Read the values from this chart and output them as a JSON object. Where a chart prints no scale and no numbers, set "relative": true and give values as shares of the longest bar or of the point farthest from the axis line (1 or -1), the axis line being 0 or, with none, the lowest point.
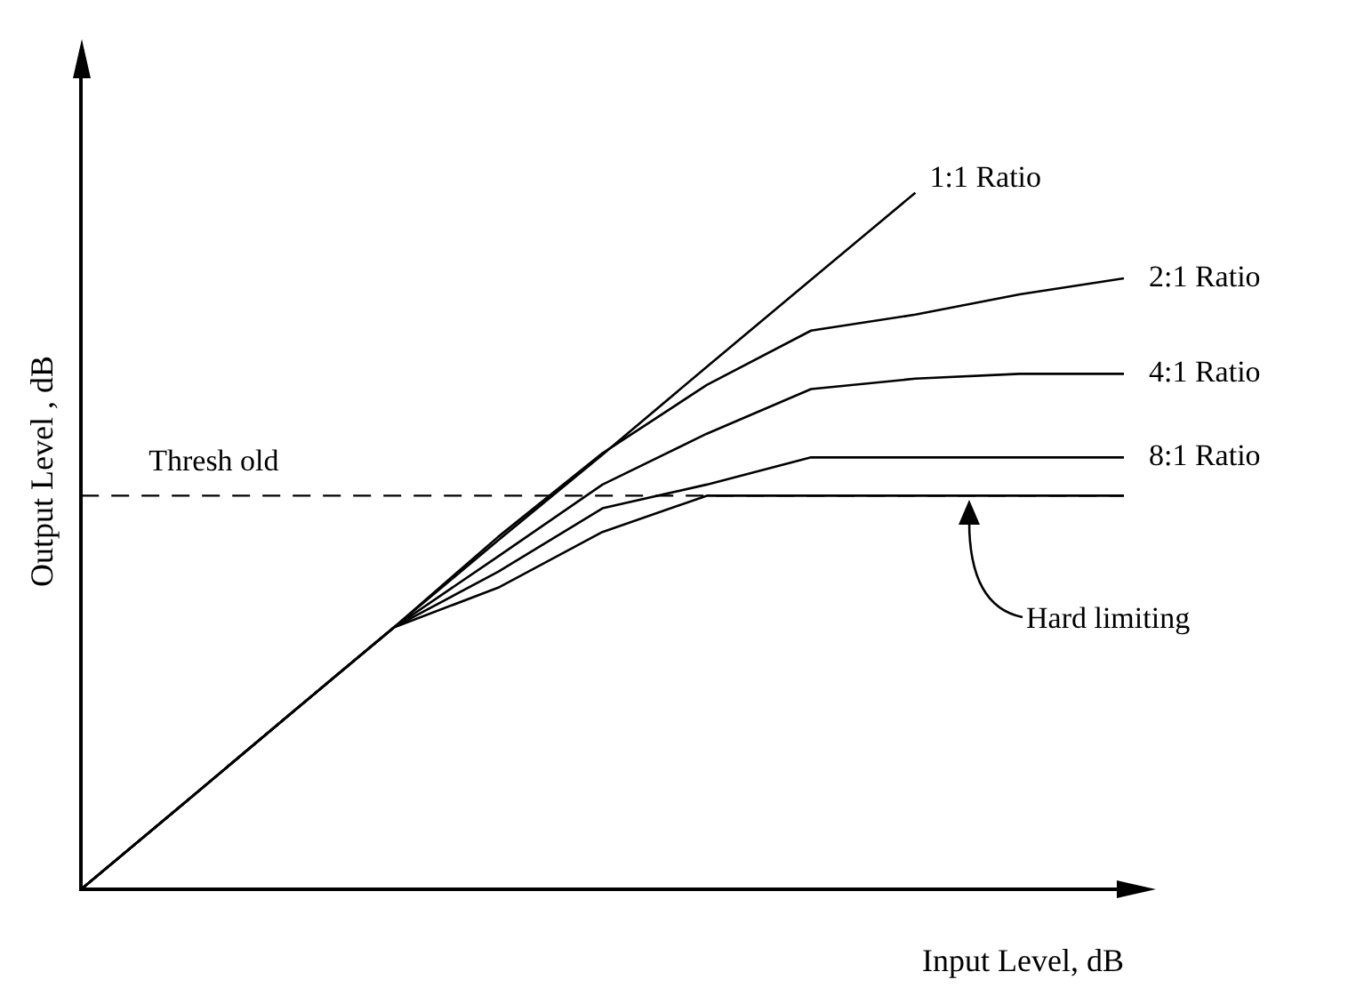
{
  "chart_data": {
    "type": "line",
    "relative": true,
    "xlabel": "Input Level, dB",
    "ylabel": "Output Level , dB",
    "legend": false,
    "categories": [
      null,
      null,
      null,
      null,
      null,
      null,
      null,
      null,
      null,
      null,
      null
    ],
    "series": [
      {
        "name": "1:1 Ratio",
        "color": "#000000",
        "values": [
          0,
          0.125,
          0.251,
          0.376,
          0.501,
          0.624,
          0.75,
          0.875,
          1,
          null,
          null
        ]
      },
      {
        "name": "2:1 Ratio",
        "color": "#000000",
        "values": [
          0,
          0.125,
          0.251,
          0.376,
          0.506,
          0.626,
          0.724,
          0.802,
          0.825,
          0.854,
          0.877
        ]
      },
      {
        "name": "4:1 Ratio",
        "color": "#000000",
        "values": [
          0,
          0.125,
          0.251,
          0.376,
          0.478,
          0.581,
          0.654,
          0.718,
          0.733,
          0.74,
          0.74
        ]
      },
      {
        "name": "8:1 Ratio",
        "color": "#000000",
        "values": [
          0,
          0.125,
          0.251,
          0.376,
          0.456,
          0.547,
          0.581,
          0.62,
          0.62,
          0.62,
          0.62
        ]
      },
      {
        "color": "#000000",
        "values": [
          0,
          0.125,
          0.251,
          0.376,
          0.433,
          0.513,
          0.565,
          0.565,
          0.565,
          0.565,
          0.565
        ]
      }
    ],
    "annotations": [
      "Hard limiting"
    ],
    "ref_lines": [
      {
        "axis": "y",
        "value": 0.565,
        "label": "Thresh old",
        "color": "#000000",
        "line_style": "dashed"
      }
    ]
  }
}
